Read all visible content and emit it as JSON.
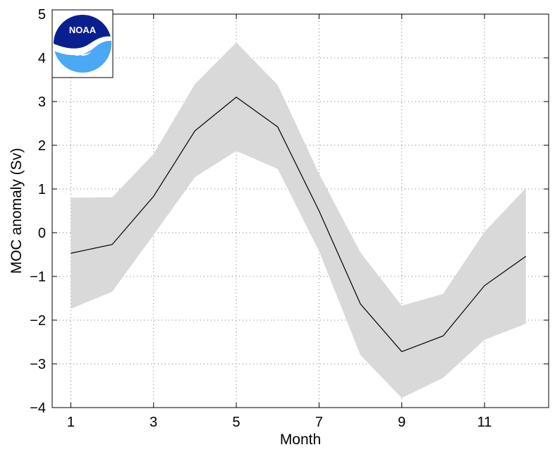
{
  "chart_data": {
    "type": "line",
    "xlabel": "Month",
    "ylabel": "MOC anomaly (Sv)",
    "xlim": [
      0.55,
      12.55
    ],
    "ylim": [
      -4,
      5
    ],
    "xticks": [
      1,
      3,
      5,
      7,
      9,
      11
    ],
    "yticks": [
      -4,
      -3,
      -2,
      -1,
      0,
      1,
      2,
      3,
      4,
      5
    ],
    "grid": true,
    "x": [
      1,
      2,
      3,
      4,
      5,
      6,
      7,
      8,
      9,
      10,
      11,
      12
    ],
    "series": [
      {
        "values": [
          -0.47,
          -0.27,
          0.83,
          2.33,
          3.1,
          2.42,
          0.5,
          -1.63,
          -2.72,
          -2.36,
          -1.21,
          -0.54
        ],
        "color": "#000000"
      }
    ],
    "band": {
      "upper": [
        0.8,
        0.81,
        1.8,
        3.4,
        4.35,
        3.38,
        1.35,
        -0.45,
        -1.67,
        -1.4,
        0.02,
        1.02
      ],
      "lower": [
        -1.74,
        -1.35,
        -0.05,
        1.27,
        1.87,
        1.46,
        -0.42,
        -2.8,
        -3.78,
        -3.32,
        -2.45,
        -2.08
      ],
      "color": "#d9d9d9"
    }
  },
  "logo": {
    "text": "NOAA",
    "colors": {
      "top": "#0a1f8f",
      "bottom": "#4aa8f5",
      "band": "#ffffff"
    }
  }
}
